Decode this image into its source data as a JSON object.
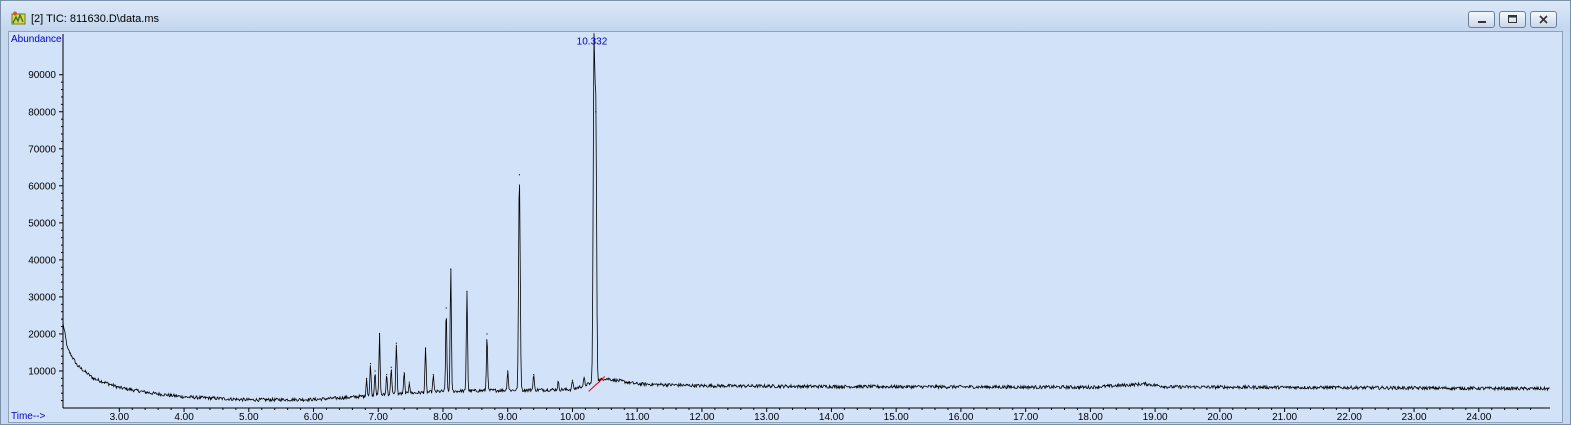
{
  "window": {
    "title": "[2] TIC: 811630.D\\data.ms",
    "app_icon": "chromatogram-app-icon",
    "buttons": [
      "minimize-icon",
      "maximize-icon",
      "close-icon"
    ]
  },
  "chart_data": {
    "type": "line",
    "ylabel": "Abundance",
    "xlabel": "Time-->",
    "xlim": [
      2.13,
      25.1
    ],
    "ylim": [
      0,
      101000
    ],
    "yticks": [
      10000,
      20000,
      30000,
      40000,
      50000,
      60000,
      70000,
      80000,
      90000
    ],
    "xticks": [
      3.0,
      4.0,
      5.0,
      6.0,
      7.0,
      8.0,
      9.0,
      10.0,
      11.0,
      12.0,
      13.0,
      14.0,
      15.0,
      16.0,
      17.0,
      18.0,
      19.0,
      20.0,
      21.0,
      22.0,
      23.0,
      24.0
    ],
    "ytick_labels": [
      "10000",
      "20000",
      "30000",
      "40000",
      "50000",
      "60000",
      "70000",
      "80000",
      "90000"
    ],
    "xtick_labels": [
      "3.00",
      "4.00",
      "5.00",
      "6.00",
      "7.00",
      "8.00",
      "9.00",
      "10.00",
      "11.00",
      "12.00",
      "13.00",
      "14.00",
      "15.00",
      "16.00",
      "17.00",
      "18.00",
      "19.00",
      "20.00",
      "21.00",
      "22.00",
      "23.00",
      "24.00"
    ],
    "baseline": [
      {
        "x": 2.13,
        "y": 23000
      },
      {
        "x": 2.2,
        "y": 16000
      },
      {
        "x": 2.35,
        "y": 11500
      },
      {
        "x": 2.6,
        "y": 8000
      },
      {
        "x": 3.0,
        "y": 5500
      },
      {
        "x": 3.5,
        "y": 4000
      },
      {
        "x": 4.0,
        "y": 3000
      },
      {
        "x": 5.0,
        "y": 2200
      },
      {
        "x": 6.0,
        "y": 2300
      },
      {
        "x": 6.5,
        "y": 2800
      },
      {
        "x": 7.0,
        "y": 3500
      },
      {
        "x": 8.0,
        "y": 4500
      },
      {
        "x": 9.0,
        "y": 4800
      },
      {
        "x": 10.0,
        "y": 5000
      },
      {
        "x": 10.5,
        "y": 8000
      },
      {
        "x": 11.0,
        "y": 6500
      },
      {
        "x": 12.0,
        "y": 6000
      },
      {
        "x": 14.0,
        "y": 5800
      },
      {
        "x": 18.0,
        "y": 5600
      },
      {
        "x": 18.85,
        "y": 6500
      },
      {
        "x": 19.2,
        "y": 5700
      },
      {
        "x": 22.0,
        "y": 5500
      },
      {
        "x": 25.1,
        "y": 5200
      }
    ],
    "peaks": [
      {
        "x": 6.82,
        "y": 8000
      },
      {
        "x": 6.88,
        "y": 12000
      },
      {
        "x": 6.95,
        "y": 10000
      },
      {
        "x": 7.02,
        "y": 20000
      },
      {
        "x": 7.13,
        "y": 9000
      },
      {
        "x": 7.2,
        "y": 11000
      },
      {
        "x": 7.28,
        "y": 17500
      },
      {
        "x": 7.4,
        "y": 9500
      },
      {
        "x": 7.48,
        "y": 7000
      },
      {
        "x": 7.73,
        "y": 16000
      },
      {
        "x": 7.85,
        "y": 9000
      },
      {
        "x": 8.05,
        "y": 27000
      },
      {
        "x": 8.12,
        "y": 37500
      },
      {
        "x": 8.37,
        "y": 31500
      },
      {
        "x": 8.68,
        "y": 20000
      },
      {
        "x": 9.0,
        "y": 10000
      },
      {
        "x": 9.18,
        "y": 63000
      },
      {
        "x": 9.4,
        "y": 9000
      },
      {
        "x": 9.78,
        "y": 7000
      },
      {
        "x": 10.0,
        "y": 7500
      },
      {
        "x": 10.18,
        "y": 8000
      },
      {
        "x": 10.332,
        "y": 96000
      },
      {
        "x": 10.36,
        "y": 80000
      }
    ],
    "annotations": [
      {
        "x": 10.332,
        "label": "10.332"
      }
    ],
    "integration_line": {
      "x": [
        10.25,
        10.5
      ],
      "y": [
        4500,
        8500
      ]
    },
    "colors": {
      "trace": "#000000",
      "axis_text": "#0000c8",
      "integration": "#e00000",
      "background": "#d2e3f9"
    }
  }
}
